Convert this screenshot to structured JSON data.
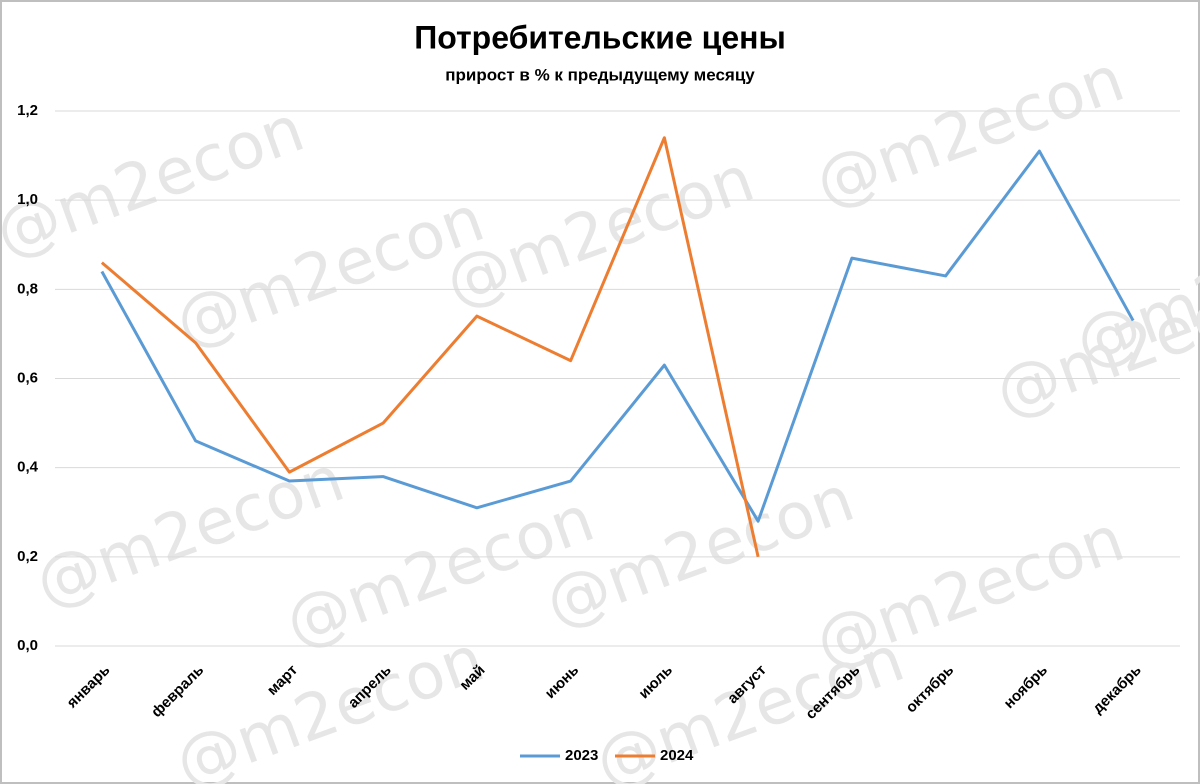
{
  "chart_data": {
    "type": "line",
    "title": "Потребительские цены",
    "subtitle": "прирост в % к предыдущему месяцу",
    "watermark": "@m2econ",
    "categories": [
      "январь",
      "февраль",
      "март",
      "апрель",
      "май",
      "июнь",
      "июль",
      "август",
      "сентябрь",
      "октябрь",
      "ноябрь",
      "декабрь"
    ],
    "series": [
      {
        "name": "2023",
        "color": "#5b9bd5",
        "values": [
          0.84,
          0.46,
          0.37,
          0.38,
          0.31,
          0.37,
          0.63,
          0.28,
          0.87,
          0.83,
          1.11,
          0.73
        ]
      },
      {
        "name": "2024",
        "color": "#ed7d31",
        "values": [
          0.86,
          0.68,
          0.39,
          0.5,
          0.74,
          0.64,
          1.14,
          0.2,
          null,
          null,
          null,
          null
        ]
      }
    ],
    "ylim": [
      0,
      1.2
    ],
    "yticks": [
      {
        "value": 0,
        "label": "0,0"
      },
      {
        "value": 0.2,
        "label": "0,2"
      },
      {
        "value": 0.4,
        "label": "0,4"
      },
      {
        "value": 0.6,
        "label": "0,6"
      },
      {
        "value": 0.8,
        "label": "0,8"
      },
      {
        "value": 1.0,
        "label": "1,0"
      },
      {
        "value": 1.2,
        "label": "1,2"
      }
    ],
    "grid": true,
    "legend": "bottom"
  }
}
